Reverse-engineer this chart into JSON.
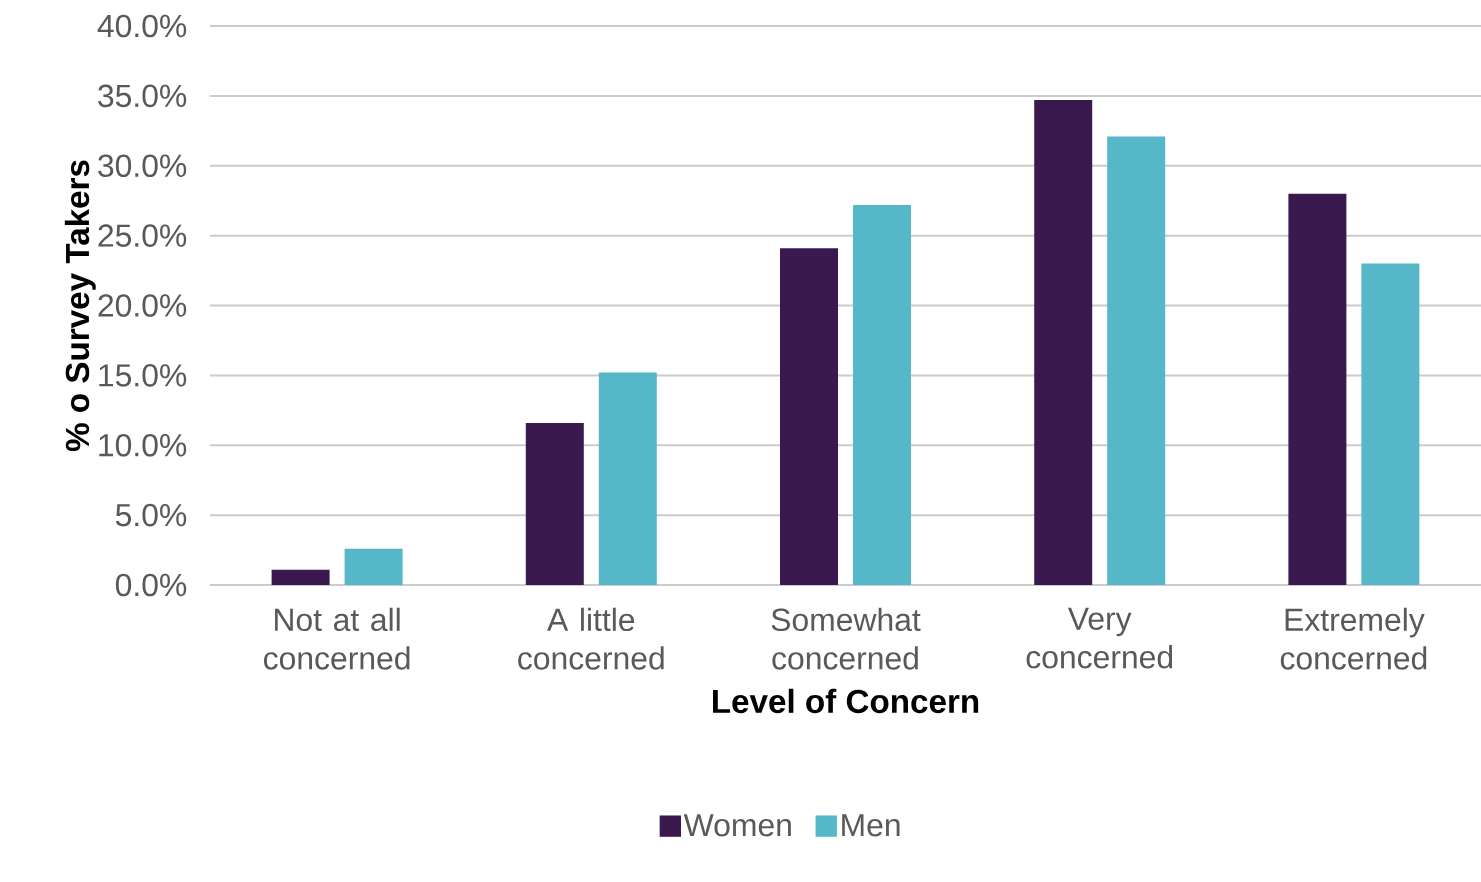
{
  "chart_data": {
    "type": "bar",
    "xlabel": "Level of Concern",
    "ylabel": "% o Survey Takers",
    "categories": [
      "Not at all concerned",
      "A little concerned",
      "Somewhat concerned",
      "Very concerned",
      "Extremely concerned"
    ],
    "series": [
      {
        "name": "Women",
        "color": "#3a1a4e",
        "values": [
          1.1,
          11.6,
          24.1,
          34.7,
          28.0
        ]
      },
      {
        "name": "Men",
        "color": "#55b7c8",
        "values": [
          2.6,
          15.2,
          27.2,
          32.1,
          23.0
        ]
      }
    ],
    "ylim": [
      0,
      40
    ],
    "yticks": [
      {
        "value": 0,
        "label": "0.0%"
      },
      {
        "value": 5,
        "label": "5.0%"
      },
      {
        "value": 10,
        "label": "10.0%"
      },
      {
        "value": 15,
        "label": "15.0%"
      },
      {
        "value": 20,
        "label": "20.0%"
      },
      {
        "value": 25,
        "label": "25.0%"
      },
      {
        "value": 30,
        "label": "30.0%"
      },
      {
        "value": 35,
        "label": "35.0%"
      },
      {
        "value": 40,
        "label": "40.0%"
      }
    ],
    "grid": "y",
    "legend": "bottom"
  }
}
